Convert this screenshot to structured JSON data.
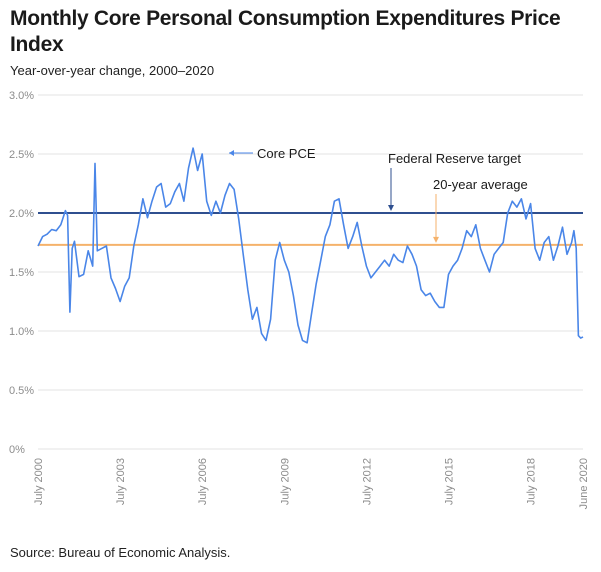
{
  "header": {
    "title": "Monthly Core Personal Consumption Expenditures Price Index",
    "subtitle": "Year-over-year change, 2000–2020"
  },
  "footer": {
    "source": "Source: Bureau of Economic Analysis."
  },
  "chart_data": {
    "type": "line",
    "title": "Monthly Core Personal Consumption Expenditures Price Index",
    "subtitle": "Year-over-year change, 2000–2020",
    "xlabel": "",
    "ylabel": "",
    "ylim": [
      0,
      3.0
    ],
    "xlim": [
      "2000-07",
      "2020-06"
    ],
    "y_ticks": [
      0,
      0.5,
      1.0,
      1.5,
      2.0,
      2.5,
      3.0
    ],
    "y_tick_labels": [
      "0%",
      "0.5%",
      "1.0%",
      "1.5%",
      "2.0%",
      "2.5%",
      "3.0%"
    ],
    "x_ticks": [
      "2000-07",
      "2003-07",
      "2006-07",
      "2009-07",
      "2012-07",
      "2015-07",
      "2018-07",
      "2020-06"
    ],
    "x_tick_labels": [
      "July 2000",
      "July 2003",
      "July 2006",
      "July 2009",
      "July 2012",
      "July 2015",
      "July 2018",
      "June 2020"
    ],
    "grid": "horizontal",
    "colors": {
      "series": "#4a86e8",
      "target": "#2f4f8f",
      "average": "#f5b26b",
      "grid": "#e3e3e3"
    },
    "series": [
      {
        "name": "Core PCE",
        "points": [
          [
            "2000-07",
            1.72
          ],
          [
            "2000-09",
            1.8
          ],
          [
            "2000-11",
            1.82
          ],
          [
            "2001-01",
            1.86
          ],
          [
            "2001-03",
            1.85
          ],
          [
            "2001-05",
            1.9
          ],
          [
            "2001-07",
            2.02
          ],
          [
            "2001-08",
            1.98
          ],
          [
            "2001-09",
            1.16
          ],
          [
            "2001-10",
            1.7
          ],
          [
            "2001-11",
            1.76
          ],
          [
            "2002-01",
            1.46
          ],
          [
            "2002-03",
            1.48
          ],
          [
            "2002-05",
            1.68
          ],
          [
            "2002-07",
            1.55
          ],
          [
            "2002-08",
            2.42
          ],
          [
            "2002-09",
            1.68
          ],
          [
            "2002-11",
            1.7
          ],
          [
            "2003-01",
            1.72
          ],
          [
            "2003-03",
            1.45
          ],
          [
            "2003-05",
            1.36
          ],
          [
            "2003-07",
            1.25
          ],
          [
            "2003-09",
            1.38
          ],
          [
            "2003-11",
            1.45
          ],
          [
            "2004-01",
            1.72
          ],
          [
            "2004-03",
            1.9
          ],
          [
            "2004-05",
            2.12
          ],
          [
            "2004-07",
            1.96
          ],
          [
            "2004-09",
            2.1
          ],
          [
            "2004-11",
            2.22
          ],
          [
            "2005-01",
            2.25
          ],
          [
            "2005-03",
            2.05
          ],
          [
            "2005-05",
            2.08
          ],
          [
            "2005-07",
            2.18
          ],
          [
            "2005-09",
            2.25
          ],
          [
            "2005-11",
            2.1
          ],
          [
            "2006-01",
            2.38
          ],
          [
            "2006-03",
            2.55
          ],
          [
            "2006-05",
            2.36
          ],
          [
            "2006-07",
            2.5
          ],
          [
            "2006-09",
            2.1
          ],
          [
            "2006-11",
            1.98
          ],
          [
            "2007-01",
            2.1
          ],
          [
            "2007-03",
            2.0
          ],
          [
            "2007-05",
            2.15
          ],
          [
            "2007-07",
            2.25
          ],
          [
            "2007-09",
            2.2
          ],
          [
            "2007-11",
            1.95
          ],
          [
            "2008-01",
            1.65
          ],
          [
            "2008-03",
            1.35
          ],
          [
            "2008-05",
            1.1
          ],
          [
            "2008-07",
            1.2
          ],
          [
            "2008-09",
            0.98
          ],
          [
            "2008-11",
            0.92
          ],
          [
            "2009-01",
            1.1
          ],
          [
            "2009-03",
            1.6
          ],
          [
            "2009-05",
            1.75
          ],
          [
            "2009-07",
            1.6
          ],
          [
            "2009-09",
            1.5
          ],
          [
            "2009-11",
            1.3
          ],
          [
            "2010-01",
            1.05
          ],
          [
            "2010-03",
            0.92
          ],
          [
            "2010-05",
            0.9
          ],
          [
            "2010-07",
            1.15
          ],
          [
            "2010-09",
            1.4
          ],
          [
            "2010-11",
            1.6
          ],
          [
            "2011-01",
            1.8
          ],
          [
            "2011-03",
            1.9
          ],
          [
            "2011-05",
            2.1
          ],
          [
            "2011-07",
            2.12
          ],
          [
            "2011-09",
            1.9
          ],
          [
            "2011-11",
            1.7
          ],
          [
            "2012-01",
            1.8
          ],
          [
            "2012-03",
            1.92
          ],
          [
            "2012-05",
            1.72
          ],
          [
            "2012-07",
            1.55
          ],
          [
            "2012-09",
            1.45
          ],
          [
            "2012-11",
            1.5
          ],
          [
            "2013-01",
            1.55
          ],
          [
            "2013-03",
            1.6
          ],
          [
            "2013-05",
            1.55
          ],
          [
            "2013-07",
            1.65
          ],
          [
            "2013-09",
            1.6
          ],
          [
            "2013-11",
            1.58
          ],
          [
            "2014-01",
            1.72
          ],
          [
            "2014-03",
            1.65
          ],
          [
            "2014-05",
            1.55
          ],
          [
            "2014-07",
            1.35
          ],
          [
            "2014-09",
            1.3
          ],
          [
            "2014-11",
            1.32
          ],
          [
            "2015-01",
            1.25
          ],
          [
            "2015-03",
            1.2
          ],
          [
            "2015-05",
            1.2
          ],
          [
            "2015-07",
            1.48
          ],
          [
            "2015-09",
            1.55
          ],
          [
            "2015-11",
            1.6
          ],
          [
            "2016-01",
            1.7
          ],
          [
            "2016-03",
            1.85
          ],
          [
            "2016-05",
            1.8
          ],
          [
            "2016-07",
            1.9
          ],
          [
            "2016-09",
            1.7
          ],
          [
            "2016-11",
            1.6
          ],
          [
            "2017-01",
            1.5
          ],
          [
            "2017-03",
            1.65
          ],
          [
            "2017-05",
            1.7
          ],
          [
            "2017-07",
            1.75
          ],
          [
            "2017-09",
            2.0
          ],
          [
            "2017-11",
            2.1
          ],
          [
            "2018-01",
            2.05
          ],
          [
            "2018-03",
            2.12
          ],
          [
            "2018-05",
            1.95
          ],
          [
            "2018-07",
            2.08
          ],
          [
            "2018-09",
            1.7
          ],
          [
            "2018-11",
            1.6
          ],
          [
            "2019-01",
            1.75
          ],
          [
            "2019-03",
            1.8
          ],
          [
            "2019-05",
            1.6
          ],
          [
            "2019-07",
            1.72
          ],
          [
            "2019-09",
            1.88
          ],
          [
            "2019-11",
            1.65
          ],
          [
            "2020-01",
            1.75
          ],
          [
            "2020-02",
            1.85
          ],
          [
            "2020-03",
            1.7
          ],
          [
            "2020-04",
            0.96
          ],
          [
            "2020-05",
            0.94
          ],
          [
            "2020-06",
            0.95
          ]
        ]
      }
    ],
    "reference_lines": [
      {
        "name": "Federal Reserve target",
        "value": 2.0
      },
      {
        "name": "20-year average",
        "value": 1.73
      }
    ],
    "annotations": [
      {
        "text": "Core PCE"
      },
      {
        "text": "Federal Reserve target"
      },
      {
        "text": "20-year average"
      }
    ]
  }
}
